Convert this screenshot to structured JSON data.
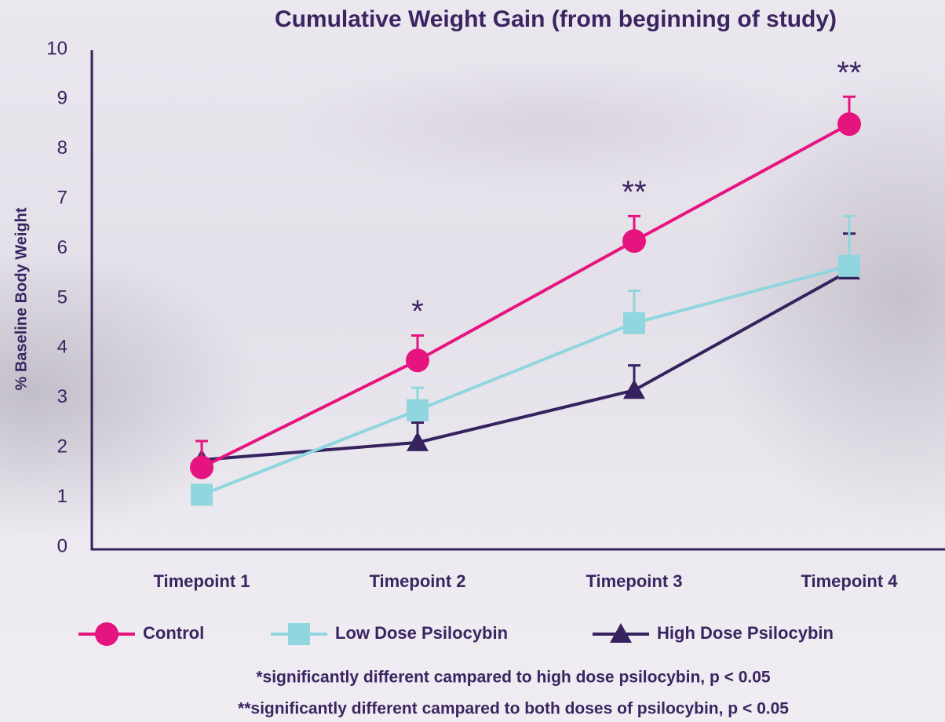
{
  "chart_data": {
    "type": "line",
    "title": "Cumulative Weight Gain (from beginning of study)",
    "y_label": "% Baseline Body Weight",
    "categories": [
      "Timepoint 1",
      "Timepoint 2",
      "Timepoint 3",
      "Timepoint 4"
    ],
    "series": [
      {
        "name": "Control",
        "color": "#e6147f",
        "marker": "circle",
        "values": [
          1.6,
          3.75,
          6.15,
          8.5
        ],
        "errors": [
          0.53,
          0.5,
          0.5,
          0.55
        ]
      },
      {
        "name": "Low Dose Psilocybin",
        "color": "#8fd6de",
        "marker": "square",
        "values": [
          1.05,
          2.75,
          4.5,
          5.65
        ],
        "errors": [
          null,
          0.45,
          0.65,
          1.0
        ]
      },
      {
        "name": "High Dose Psilocybin",
        "color": "#36225e",
        "marker": "triangle",
        "values": [
          1.75,
          2.1,
          3.15,
          5.55
        ],
        "errors": [
          null,
          0.4,
          0.5,
          0.75
        ]
      }
    ],
    "significance": [
      null,
      "*",
      "**",
      "**"
    ],
    "ylim": [
      0,
      10
    ],
    "yticks": [
      0,
      1,
      2,
      3,
      4,
      5,
      6,
      7,
      8,
      9,
      10
    ],
    "legend": "bottom",
    "footnotes": [
      "*significantly different campared to high dose psilocybin, p < 0.05",
      "**significantly different campared to both doses of psilocybin, p < 0.05"
    ]
  }
}
